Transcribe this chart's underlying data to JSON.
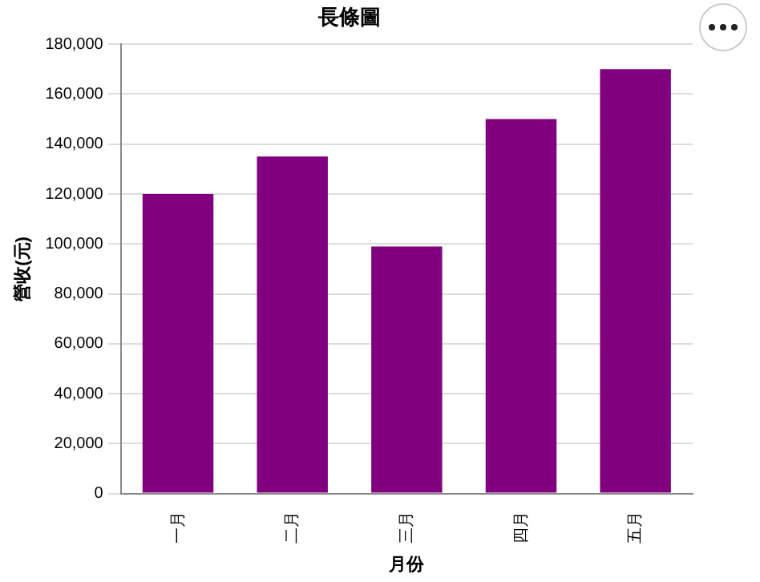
{
  "chart_data": {
    "type": "bar",
    "title": "長條圖",
    "xlabel": "月份",
    "ylabel": "營收(元)",
    "categories": [
      "一月",
      "二月",
      "三月",
      "四月",
      "五月"
    ],
    "values": [
      120000,
      135000,
      99000,
      150000,
      170000
    ],
    "color": "#800080",
    "ylim": [
      0,
      180000
    ],
    "yticks": [
      0,
      {
        "value": 20000,
        "label": "20,000"
      },
      {
        "value": 40000,
        "label": "40,000"
      },
      {
        "value": 60000,
        "label": "60,000"
      },
      {
        "value": 80000,
        "label": "80,000"
      },
      {
        "value": 100000,
        "label": "100,000"
      },
      {
        "value": 120000,
        "label": "120,000"
      },
      {
        "value": 140000,
        "label": "140,000"
      },
      {
        "value": 160000,
        "label": "160,000"
      },
      {
        "value": 180000,
        "label": "180,000"
      }
    ],
    "grid": "y"
  }
}
